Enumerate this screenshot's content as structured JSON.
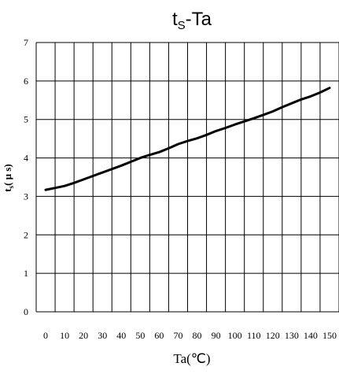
{
  "chart_data": {
    "type": "line",
    "title": {
      "main": "t",
      "sub": "S",
      "rest": "-Ta"
    },
    "xlabel": "Ta(℃)",
    "ylabel": {
      "main": "t",
      "sub": "s",
      "rest": "( μ s)"
    },
    "xlim": [
      -5,
      155
    ],
    "ylim": [
      0,
      7
    ],
    "grid": true,
    "x_ticks": [
      0,
      10,
      20,
      30,
      40,
      50,
      60,
      70,
      80,
      90,
      100,
      110,
      120,
      130,
      140,
      150
    ],
    "y_ticks": [
      0,
      1,
      2,
      3,
      4,
      5,
      6,
      7
    ],
    "series": [
      {
        "color": "#000000",
        "x": [
          0,
          5,
          10,
          15,
          20,
          25,
          30,
          35,
          40,
          45,
          50,
          55,
          60,
          65,
          70,
          75,
          80,
          85,
          90,
          95,
          100,
          105,
          110,
          115,
          120,
          125,
          130,
          135,
          140,
          145,
          150
        ],
        "y": [
          3.17,
          3.22,
          3.27,
          3.35,
          3.44,
          3.53,
          3.62,
          3.71,
          3.8,
          3.9,
          4.0,
          4.08,
          4.15,
          4.25,
          4.36,
          4.44,
          4.51,
          4.6,
          4.7,
          4.78,
          4.87,
          4.95,
          5.03,
          5.12,
          5.21,
          5.32,
          5.42,
          5.52,
          5.6,
          5.7,
          5.82
        ]
      }
    ]
  }
}
